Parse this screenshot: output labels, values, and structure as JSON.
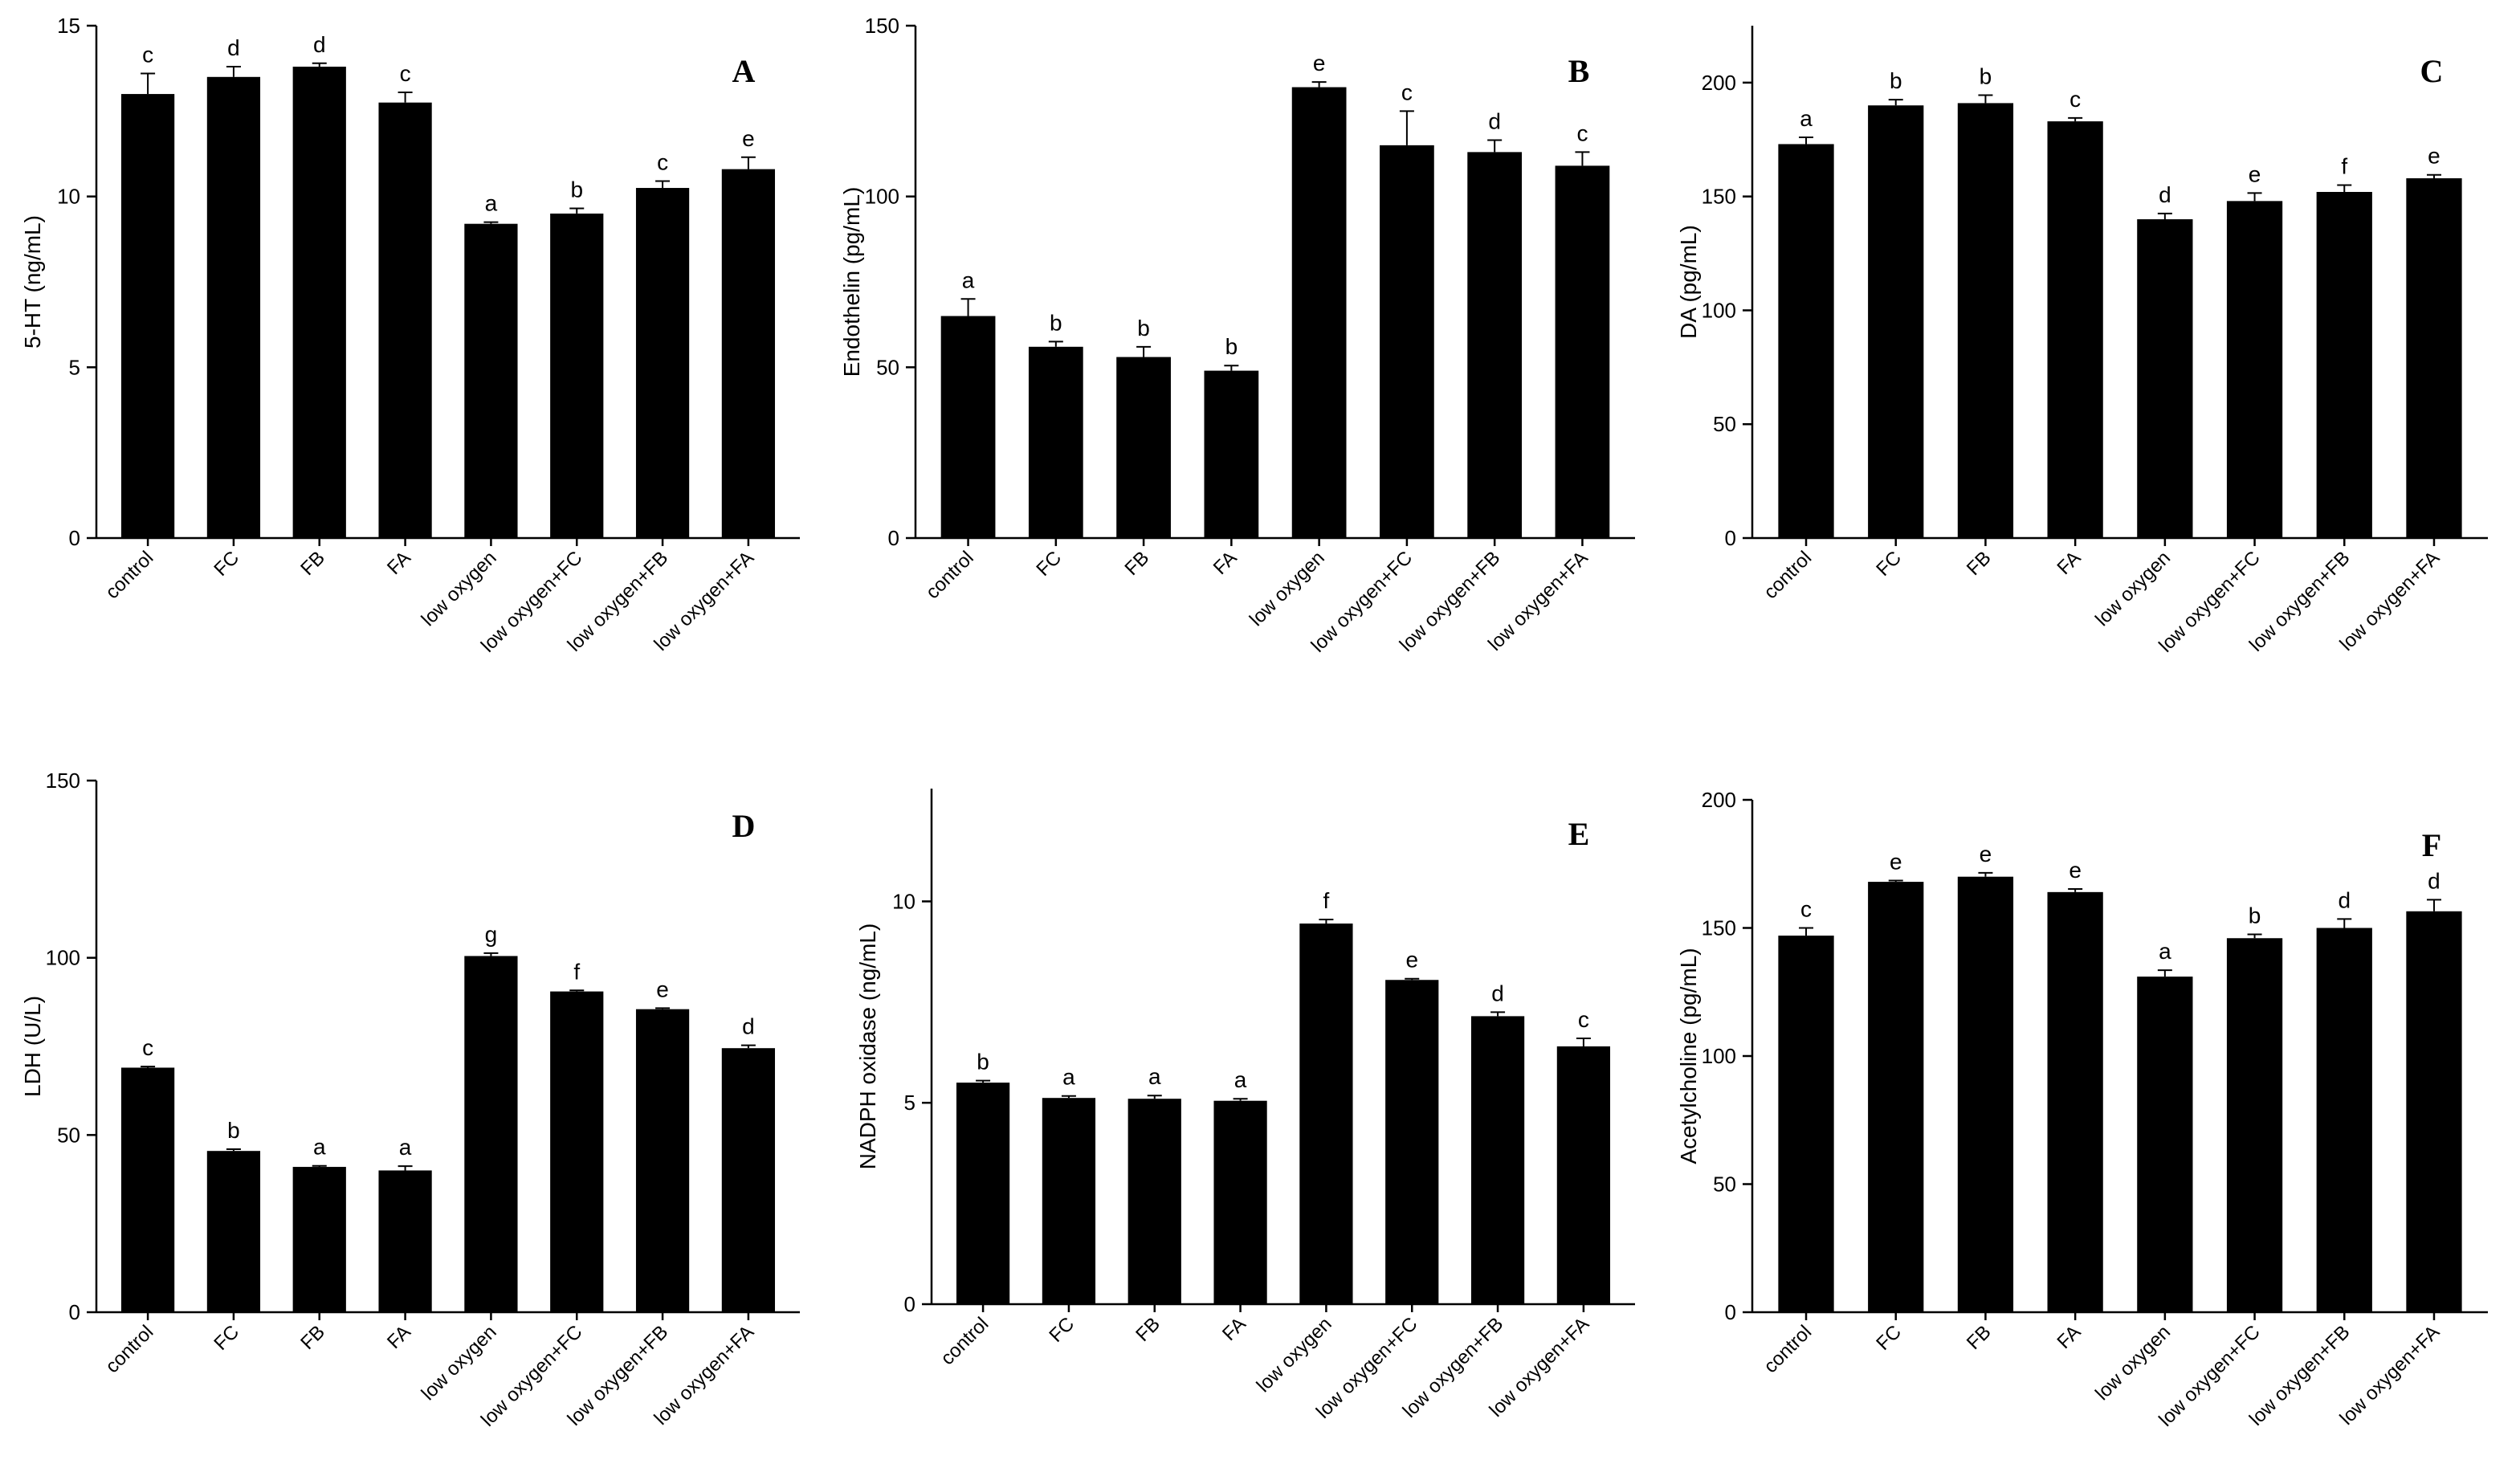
{
  "chart_data": [
    {
      "type": "bar",
      "panel": "A",
      "title": "",
      "ylabel": "5-HT (ng/mL)",
      "xlabel": "",
      "ylim": [
        0,
        15
      ],
      "yticks": [
        0,
        5,
        10,
        15
      ],
      "categories": [
        "control",
        "FC",
        "FB",
        "FA",
        "low oxygen",
        "low oxygen+FC",
        "low oxygen+FB",
        "low oxygen+FA"
      ],
      "values": [
        13.0,
        13.5,
        13.8,
        12.75,
        9.2,
        9.5,
        10.25,
        10.8
      ],
      "errors": [
        0.6,
        0.3,
        0.1,
        0.3,
        0.05,
        0.15,
        0.2,
        0.35
      ],
      "labels": [
        "c",
        "d",
        "d",
        "c",
        "a",
        "b",
        "c",
        "e"
      ]
    },
    {
      "type": "bar",
      "panel": "B",
      "title": "",
      "ylabel": "Endothelin (pg/mL)",
      "xlabel": "",
      "ylim": [
        0,
        150
      ],
      "yticks": [
        0,
        50,
        100,
        150
      ],
      "categories": [
        "control",
        "FC",
        "FB",
        "FA",
        "low oxygen",
        "low oxygen+FC",
        "low oxygen+FB",
        "low oxygen+FA"
      ],
      "values": [
        65,
        56,
        53,
        49,
        132,
        115,
        113,
        109
      ],
      "errors": [
        5,
        1.5,
        3,
        1.5,
        1.5,
        10,
        3.5,
        4
      ],
      "labels": [
        "a",
        "b",
        "b",
        "b",
        "e",
        "c",
        "d",
        "c"
      ]
    },
    {
      "type": "bar",
      "panel": "C",
      "title": "",
      "ylabel": "DA (pg/mL)",
      "xlabel": "",
      "ylim": [
        0,
        225
      ],
      "yticks": [
        0,
        50,
        100,
        150,
        200
      ],
      "categories": [
        "control",
        "FC",
        "FB",
        "FA",
        "low oxygen",
        "low oxygen+FC",
        "low oxygen+FB",
        "low oxygen+FA"
      ],
      "values": [
        173,
        190,
        191,
        183,
        140,
        148,
        152,
        158
      ],
      "errors": [
        3,
        2.5,
        3.5,
        1.5,
        2.5,
        3.5,
        3,
        1.5
      ],
      "labels": [
        "a",
        "b",
        "b",
        "c",
        "d",
        "e",
        "f",
        "e"
      ]
    },
    {
      "type": "bar",
      "panel": "D",
      "title": "",
      "ylabel": "LDH (U/L)",
      "xlabel": "",
      "ylim": [
        0,
        150
      ],
      "yticks": [
        0,
        50,
        100,
        150
      ],
      "categories": [
        "control",
        "FC",
        "FB",
        "FA",
        "low oxygen",
        "low oxygen+FC",
        "low oxygen+FB",
        "low oxygen+FA"
      ],
      "values": [
        69,
        45.5,
        41,
        40,
        100.5,
        90.5,
        85.5,
        74.5
      ],
      "errors": [
        0.3,
        0.5,
        0.3,
        1.2,
        0.8,
        0.3,
        0.3,
        0.8
      ],
      "labels": [
        "c",
        "b",
        "a",
        "a",
        "g",
        "f",
        "e",
        "d"
      ]
    },
    {
      "type": "bar",
      "panel": "E",
      "title": "",
      "ylabel": "NADPH oxidase (ng/mL)",
      "xlabel": "",
      "ylim": [
        0,
        12.8
      ],
      "yticks": [
        0,
        5,
        10
      ],
      "categories": [
        "control",
        "FC",
        "FB",
        "FA",
        "low oxygen",
        "low oxygen+FC",
        "low oxygen+FB",
        "low oxygen+FA"
      ],
      "values": [
        5.5,
        5.12,
        5.1,
        5.05,
        9.45,
        8.05,
        7.15,
        6.4
      ],
      "errors": [
        0.05,
        0.05,
        0.08,
        0.05,
        0.1,
        0.03,
        0.1,
        0.2
      ],
      "labels": [
        "b",
        "a",
        "a",
        "a",
        "f",
        "e",
        "d",
        "c"
      ]
    },
    {
      "type": "bar",
      "panel": "F",
      "title": "",
      "ylabel": "Acetylcholine (pg/mL)",
      "xlabel": "",
      "ylim": [
        0,
        200
      ],
      "yticks": [
        0,
        50,
        100,
        150,
        200
      ],
      "categories": [
        "control",
        "FC",
        "FB",
        "FA",
        "low oxygen",
        "low oxygen+FC",
        "low oxygen+FB",
        "low oxygen+FA"
      ],
      "values": [
        147,
        168,
        170,
        164,
        131,
        146,
        150,
        156.5
      ],
      "errors": [
        3,
        0.5,
        1.5,
        1.2,
        2.5,
        1.5,
        3.5,
        4.5
      ],
      "labels": [
        "c",
        "e",
        "e",
        "e",
        "a",
        "b",
        "d",
        "d"
      ]
    }
  ]
}
